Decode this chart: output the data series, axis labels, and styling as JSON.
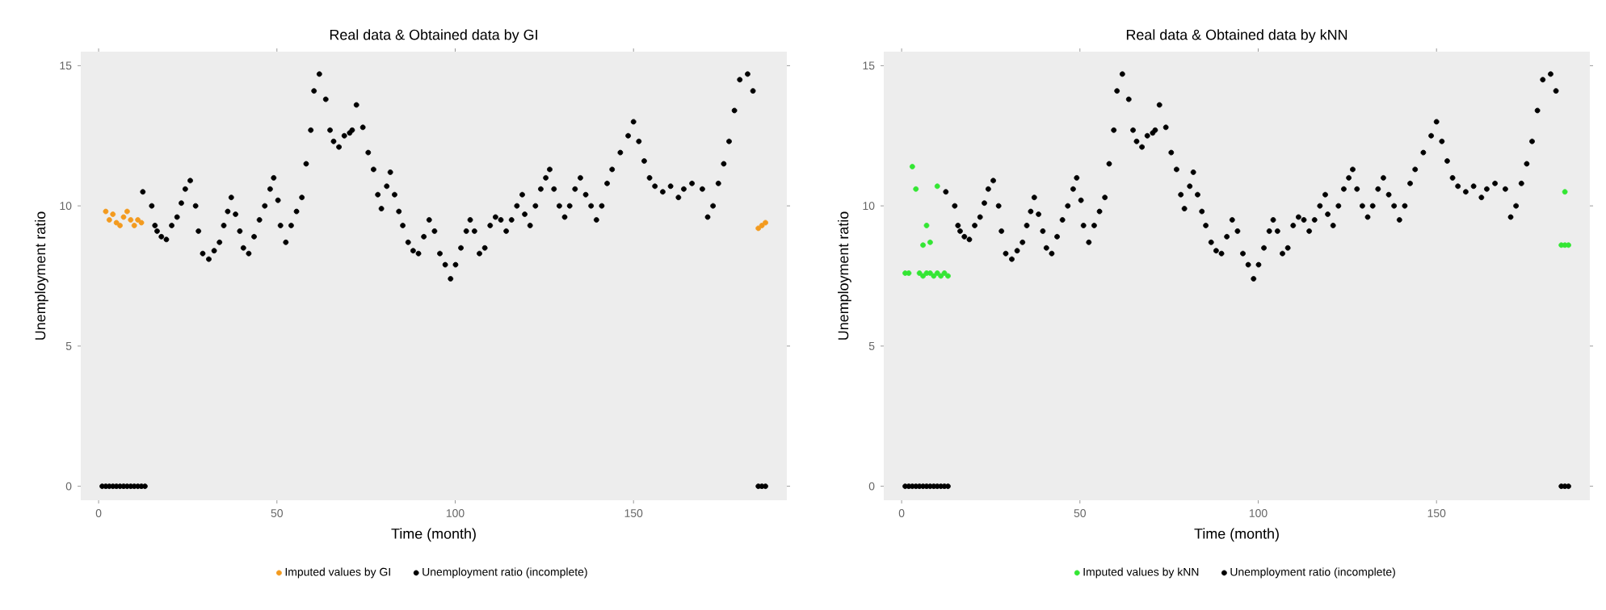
{
  "chart_data": [
    {
      "type": "scatter",
      "title": "Real data & Obtained data by GI",
      "xlabel": "Time (month)",
      "ylabel": "Unemployment ratio",
      "xlim": [
        -5,
        193
      ],
      "ylim": [
        -0.5,
        15.5
      ],
      "xticks": [
        0,
        50,
        100,
        150
      ],
      "yticks": [
        0,
        5,
        10,
        15
      ],
      "marker": "circle",
      "legend": "bottom",
      "grid": false,
      "series": [
        {
          "name": "Imputed values by GI",
          "color": "#f39a1e",
          "x": [
            2,
            3,
            4,
            5,
            6,
            7,
            8,
            9,
            10,
            11,
            12,
            185,
            186,
            187
          ],
          "values": [
            9.8,
            9.5,
            9.7,
            9.4,
            9.3,
            9.6,
            9.8,
            9.5,
            9.3,
            9.5,
            9.4,
            9.2,
            9.3,
            9.4
          ]
        },
        {
          "name": "Unemployment ratio (incomplete)",
          "color": "#000000",
          "x": [
            1,
            2,
            3,
            4,
            5,
            6,
            7,
            8,
            9,
            10,
            11,
            12,
            13,
            12.4,
            14.9,
            15.8,
            16.4,
            17.6,
            19,
            20.5,
            22,
            23.2,
            24.3,
            25.7,
            27.2,
            28,
            29.2,
            30.9,
            32.4,
            33.9,
            35.1,
            36.2,
            37.2,
            38.4,
            39.6,
            40.6,
            42.1,
            43.6,
            45.1,
            46.6,
            48.1,
            49.1,
            50.3,
            51,
            52.5,
            54,
            55.5,
            57,
            58.2,
            59.5,
            60.4,
            61.9,
            63.7,
            64.9,
            65.9,
            67.4,
            68.9,
            70.4,
            71.1,
            72.3,
            74.1,
            75.6,
            77.1,
            78.3,
            79.3,
            80.8,
            81.8,
            83,
            84.2,
            85.3,
            86.8,
            88.2,
            89.7,
            91.2,
            92.7,
            94.2,
            95.7,
            97.2,
            98.7,
            100.1,
            101.6,
            103.1,
            104.2,
            105.4,
            106.8,
            108.3,
            109.8,
            111.3,
            112.8,
            114.3,
            115.8,
            117.3,
            118.8,
            119.5,
            121,
            122.5,
            124,
            125.4,
            126.5,
            127.7,
            129.2,
            130.7,
            132.1,
            133.6,
            135.1,
            136.6,
            138.1,
            139.6,
            141.1,
            142.6,
            144,
            146.3,
            148.5,
            150,
            151.5,
            153,
            154.5,
            156,
            158.2,
            160.4,
            162.6,
            164.1,
            166.4,
            169.3,
            170.8,
            172.3,
            173.8,
            175.3,
            176.8,
            178.3,
            179.8,
            182,
            183.5,
            185,
            186,
            187
          ],
          "values": [
            0,
            0,
            0,
            0,
            0,
            0,
            0,
            0,
            0,
            0,
            0,
            0,
            0,
            10.5,
            10,
            9.3,
            9.1,
            8.9,
            8.8,
            9.3,
            9.6,
            10.1,
            10.6,
            10.9,
            10,
            9.1,
            8.3,
            8.1,
            8.4,
            8.7,
            9.3,
            9.8,
            10.3,
            9.7,
            9.1,
            8.5,
            8.3,
            8.9,
            9.5,
            10,
            10.6,
            11,
            10.2,
            9.3,
            8.7,
            9.3,
            9.8,
            10.3,
            11.5,
            12.7,
            14.1,
            14.7,
            13.8,
            12.7,
            12.3,
            12.1,
            12.5,
            12.6,
            12.7,
            13.6,
            12.8,
            11.9,
            11.3,
            10.4,
            9.9,
            10.7,
            11.2,
            10.4,
            9.8,
            9.3,
            8.7,
            8.4,
            8.3,
            8.9,
            9.5,
            9.1,
            8.3,
            7.9,
            7.4,
            7.9,
            8.5,
            9.1,
            9.5,
            9.1,
            8.3,
            8.5,
            9.3,
            9.6,
            9.5,
            9.1,
            9.5,
            10,
            10.4,
            9.7,
            9.3,
            10,
            10.6,
            11,
            11.3,
            10.6,
            10,
            9.6,
            10,
            10.6,
            11,
            10.4,
            10,
            9.5,
            10,
            10.8,
            11.3,
            11.9,
            12.5,
            13,
            12.3,
            11.6,
            11,
            10.7,
            10.5,
            10.7,
            10.3,
            10.6,
            10.8,
            10.6,
            9.6,
            10,
            10.8,
            11.5,
            12.3,
            13.4,
            14.5,
            14.7,
            14.1,
            0,
            0,
            0
          ]
        }
      ]
    },
    {
      "type": "scatter",
      "title": "Real data & Obtained data by kNN",
      "xlabel": "Time (month)",
      "ylabel": "Unemployment ratio",
      "xlim": [
        -5,
        193
      ],
      "ylim": [
        -0.5,
        15.5
      ],
      "xticks": [
        0,
        50,
        100,
        150
      ],
      "yticks": [
        0,
        5,
        10,
        15
      ],
      "marker": "circle",
      "legend": "bottom",
      "grid": false,
      "series": [
        {
          "name": "Imputed values by kNN",
          "color": "#33e633",
          "x": [
            3,
            4,
            10,
            7,
            6,
            8,
            1,
            2,
            3,
            4,
            5,
            6,
            7,
            8,
            9,
            10,
            11,
            12,
            13,
            186,
            185,
            186,
            187
          ],
          "values": [
            11.4,
            10.6,
            10.7,
            9.3,
            8.6,
            8.7,
            7.6,
            7.6,
            null,
            null,
            7.6,
            7.5,
            7.6,
            7.6,
            7.5,
            7.6,
            7.5,
            7.6,
            7.5,
            10.5,
            8.6,
            8.6,
            8.6
          ]
        },
        {
          "name": "Unemployment ratio (incomplete)",
          "color": "#000000",
          "x": [
            1,
            2,
            3,
            4,
            5,
            6,
            7,
            8,
            9,
            10,
            11,
            12,
            13,
            12.4,
            14.9,
            15.8,
            16.4,
            17.6,
            19,
            20.5,
            22,
            23.2,
            24.3,
            25.7,
            27.2,
            28,
            29.2,
            30.9,
            32.4,
            33.9,
            35.1,
            36.2,
            37.2,
            38.4,
            39.6,
            40.6,
            42.1,
            43.6,
            45.1,
            46.6,
            48.1,
            49.1,
            50.3,
            51,
            52.5,
            54,
            55.5,
            57,
            58.2,
            59.5,
            60.4,
            61.9,
            63.7,
            64.9,
            65.9,
            67.4,
            68.9,
            70.4,
            71.1,
            72.3,
            74.1,
            75.6,
            77.1,
            78.3,
            79.3,
            80.8,
            81.8,
            83,
            84.2,
            85.3,
            86.8,
            88.2,
            89.7,
            91.2,
            92.7,
            94.2,
            95.7,
            97.2,
            98.7,
            100.1,
            101.6,
            103.1,
            104.2,
            105.4,
            106.8,
            108.3,
            109.8,
            111.3,
            112.8,
            114.3,
            115.8,
            117.3,
            118.8,
            119.5,
            121,
            122.5,
            124,
            125.4,
            126.5,
            127.7,
            129.2,
            130.7,
            132.1,
            133.6,
            135.1,
            136.6,
            138.1,
            139.6,
            141.1,
            142.6,
            144,
            146.3,
            148.5,
            150,
            151.5,
            153,
            154.5,
            156,
            158.2,
            160.4,
            162.6,
            164.1,
            166.4,
            169.3,
            170.8,
            172.3,
            173.8,
            175.3,
            176.8,
            178.3,
            179.8,
            182,
            183.5,
            185,
            186,
            187
          ],
          "values": [
            0,
            0,
            0,
            0,
            0,
            0,
            0,
            0,
            0,
            0,
            0,
            0,
            0,
            10.5,
            10,
            9.3,
            9.1,
            8.9,
            8.8,
            9.3,
            9.6,
            10.1,
            10.6,
            10.9,
            10,
            9.1,
            8.3,
            8.1,
            8.4,
            8.7,
            9.3,
            9.8,
            10.3,
            9.7,
            9.1,
            8.5,
            8.3,
            8.9,
            9.5,
            10,
            10.6,
            11,
            10.2,
            9.3,
            8.7,
            9.3,
            9.8,
            10.3,
            11.5,
            12.7,
            14.1,
            14.7,
            13.8,
            12.7,
            12.3,
            12.1,
            12.5,
            12.6,
            12.7,
            13.6,
            12.8,
            11.9,
            11.3,
            10.4,
            9.9,
            10.7,
            11.2,
            10.4,
            9.8,
            9.3,
            8.7,
            8.4,
            8.3,
            8.9,
            9.5,
            9.1,
            8.3,
            7.9,
            7.4,
            7.9,
            8.5,
            9.1,
            9.5,
            9.1,
            8.3,
            8.5,
            9.3,
            9.6,
            9.5,
            9.1,
            9.5,
            10,
            10.4,
            9.7,
            9.3,
            10,
            10.6,
            11,
            11.3,
            10.6,
            10,
            9.6,
            10,
            10.6,
            11,
            10.4,
            10,
            9.5,
            10,
            10.8,
            11.3,
            11.9,
            12.5,
            13,
            12.3,
            11.6,
            11,
            10.7,
            10.5,
            10.7,
            10.3,
            10.6,
            10.8,
            10.6,
            9.6,
            10,
            10.8,
            11.5,
            12.3,
            13.4,
            14.5,
            14.7,
            14.1,
            0,
            0,
            0
          ]
        }
      ]
    }
  ]
}
